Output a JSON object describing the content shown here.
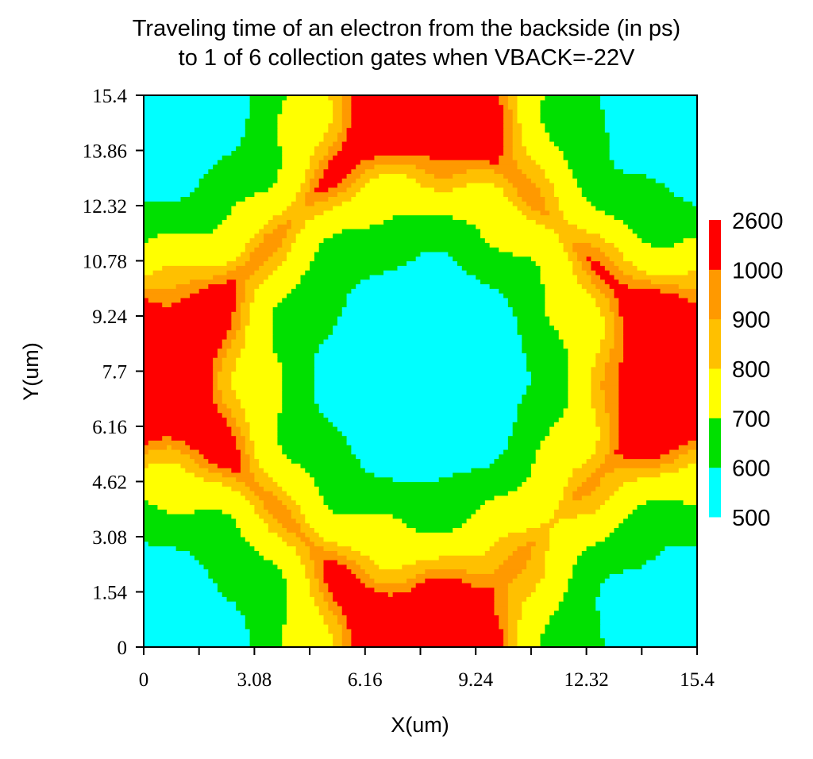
{
  "chart_data": {
    "type": "heatmap",
    "title_line1": "Traveling time of an electron from the backside (in ps)",
    "title_line2": "to 1 of 6 collection gates when VBACK=-22V",
    "xlabel": "X(um)",
    "ylabel": "Y(um)",
    "xlim": [
      0,
      15.4
    ],
    "ylim": [
      0,
      15.4
    ],
    "x_ticks": [
      "0",
      "3.08",
      "6.16",
      "9.24",
      "12.32",
      "15.4"
    ],
    "y_ticks": [
      "0",
      "1.54",
      "3.08",
      "4.62",
      "6.16",
      "7.7",
      "9.24",
      "10.78",
      "12.32",
      "13.86",
      "15.4"
    ],
    "levels": [
      500,
      600,
      700,
      800,
      900,
      1000,
      2600
    ],
    "level_labels": [
      "500",
      "600",
      "700",
      "800",
      "900",
      "1000",
      "2600"
    ],
    "colors": [
      "#00ffff",
      "#00e000",
      "#ffff00",
      "#ffc000",
      "#ff9900",
      "#ff0000"
    ],
    "center": [
      7.7,
      7.7
    ]
  }
}
